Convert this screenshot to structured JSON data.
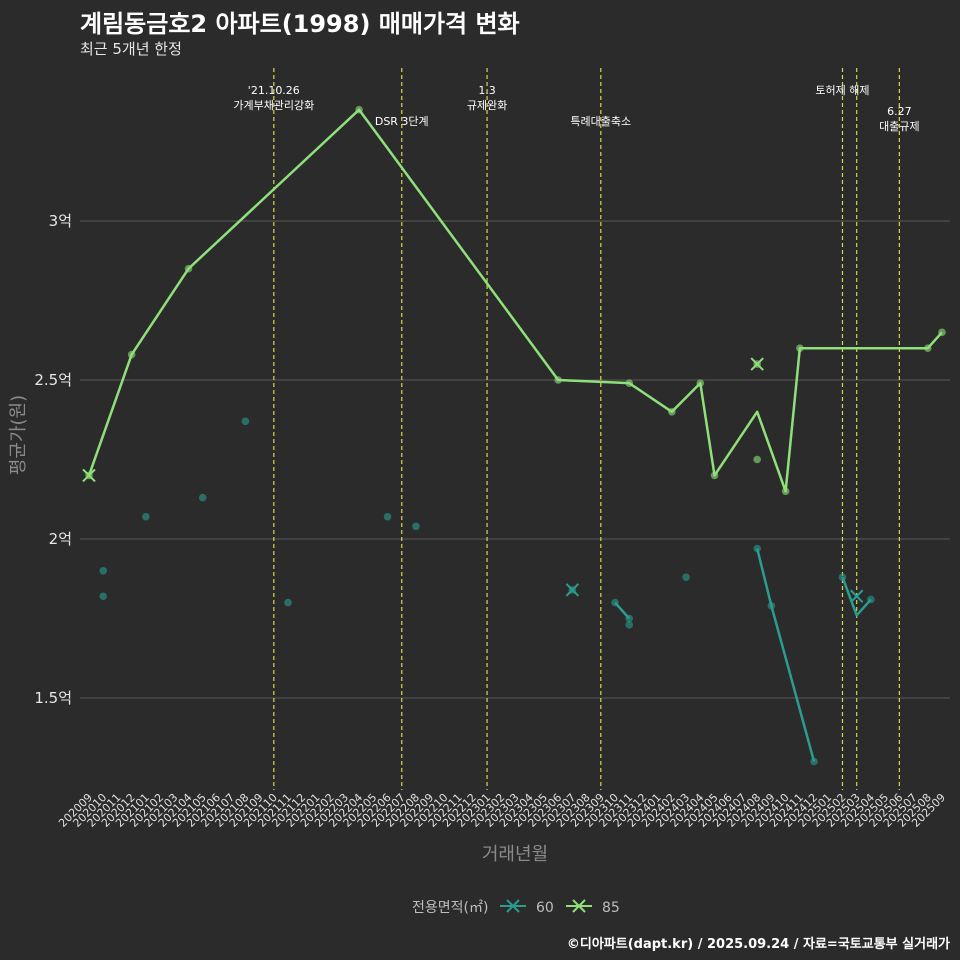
{
  "chart_data": {
    "type": "line",
    "title": "계림동금호2 아파트(1998) 매매가격 변화",
    "subtitle": "최근 5개년 한정",
    "xlabel": "거래년월",
    "ylabel": "평균가(원)",
    "caption": "©디아파트(dapt.kr) / 2025.09.24 / 자료=국토교통부 실거래가",
    "categories": [
      "202009",
      "202010",
      "202011",
      "202012",
      "202101",
      "202102",
      "202103",
      "202104",
      "202105",
      "202106",
      "202107",
      "202108",
      "202109",
      "202110",
      "202111",
      "202112",
      "202201",
      "202202",
      "202203",
      "202204",
      "202205",
      "202206",
      "202207",
      "202208",
      "202209",
      "202210",
      "202211",
      "202212",
      "202301",
      "202302",
      "202303",
      "202304",
      "202305",
      "202306",
      "202307",
      "202308",
      "202309",
      "202310",
      "202311",
      "202312",
      "202401",
      "202402",
      "202403",
      "202404",
      "202405",
      "202406",
      "202407",
      "202408",
      "202409",
      "202410",
      "202411",
      "202412",
      "202501",
      "202502",
      "202503",
      "202504",
      "202505",
      "202506",
      "202507",
      "202508",
      "202509"
    ],
    "y_ticks": [
      {
        "value": 1.5,
        "label": "1.5억"
      },
      {
        "value": 2.0,
        "label": "2억"
      },
      {
        "value": 2.5,
        "label": "2.5억"
      },
      {
        "value": 3.0,
        "label": "3억"
      }
    ],
    "ylim": [
      1.22,
      3.5
    ],
    "y_unit": "억원",
    "grid": true,
    "legend": {
      "title": "전용면적(㎡)",
      "position": "bottom"
    },
    "series": [
      {
        "name": "60",
        "color": "#2a9d8f",
        "line": [
          {
            "x": "202310",
            "y": 1.8
          },
          {
            "x": "202311",
            "y": 1.75
          },
          {
            "x": "202408",
            "y": 1.97
          },
          {
            "x": "202409",
            "y": 1.79
          },
          {
            "x": "202412",
            "y": 1.3
          },
          {
            "x": "202502",
            "y": 1.88
          },
          {
            "x": "202503",
            "y": 1.76
          },
          {
            "x": "202504",
            "y": 1.81
          }
        ],
        "line_segments": [
          [
            0,
            1
          ],
          [
            2,
            3,
            4
          ],
          [
            5,
            6,
            7
          ]
        ],
        "points": [
          {
            "x": "202010",
            "y": 1.9
          },
          {
            "x": "202010",
            "y": 1.82
          },
          {
            "x": "202101",
            "y": 2.07
          },
          {
            "x": "202105",
            "y": 2.13
          },
          {
            "x": "202108",
            "y": 2.37
          },
          {
            "x": "202111",
            "y": 1.8
          },
          {
            "x": "202206",
            "y": 2.07
          },
          {
            "x": "202208",
            "y": 2.04
          },
          {
            "x": "202307",
            "y": 1.84
          },
          {
            "x": "202310",
            "y": 1.8
          },
          {
            "x": "202311",
            "y": 1.75
          },
          {
            "x": "202311",
            "y": 1.73
          },
          {
            "x": "202403",
            "y": 1.88
          },
          {
            "x": "202408",
            "y": 1.97
          },
          {
            "x": "202409",
            "y": 1.79
          },
          {
            "x": "202412",
            "y": 1.3
          },
          {
            "x": "202502",
            "y": 1.88
          },
          {
            "x": "202504",
            "y": 1.81
          }
        ],
        "cross_markers": [
          {
            "x": "202307",
            "y": 1.84
          },
          {
            "x": "202503",
            "y": 1.82
          }
        ]
      },
      {
        "name": "85",
        "color": "#8fe07a",
        "line": [
          {
            "x": "202009",
            "y": 2.2
          },
          {
            "x": "202012",
            "y": 2.58
          },
          {
            "x": "202104",
            "y": 2.85
          },
          {
            "x": "202204",
            "y": 3.35
          },
          {
            "x": "202306",
            "y": 2.5
          },
          {
            "x": "202311",
            "y": 2.49
          },
          {
            "x": "202402",
            "y": 2.4
          },
          {
            "x": "202404",
            "y": 2.49
          },
          {
            "x": "202405",
            "y": 2.2
          },
          {
            "x": "202408",
            "y": 2.4
          },
          {
            "x": "202410",
            "y": 2.15
          },
          {
            "x": "202411",
            "y": 2.6
          },
          {
            "x": "202508",
            "y": 2.6
          },
          {
            "x": "202509",
            "y": 2.65
          }
        ],
        "points": [
          {
            "x": "202009",
            "y": 2.2
          },
          {
            "x": "202012",
            "y": 2.58
          },
          {
            "x": "202104",
            "y": 2.85
          },
          {
            "x": "202204",
            "y": 3.35
          },
          {
            "x": "202306",
            "y": 2.5
          },
          {
            "x": "202311",
            "y": 2.49
          },
          {
            "x": "202402",
            "y": 2.4
          },
          {
            "x": "202404",
            "y": 2.49
          },
          {
            "x": "202405",
            "y": 2.2
          },
          {
            "x": "202408",
            "y": 2.55
          },
          {
            "x": "202408",
            "y": 2.25
          },
          {
            "x": "202410",
            "y": 2.15
          },
          {
            "x": "202411",
            "y": 2.6
          },
          {
            "x": "202508",
            "y": 2.6
          },
          {
            "x": "202509",
            "y": 2.65
          }
        ],
        "cross_markers": [
          {
            "x": "202009",
            "y": 2.2
          },
          {
            "x": "202408",
            "y": 2.55
          }
        ]
      }
    ],
    "annotations": [
      {
        "x": "202110",
        "lines": [
          "'21.10.26",
          "가계부채관리강화"
        ],
        "row": 0
      },
      {
        "x": "202207",
        "lines": [
          "DSR 3단계"
        ],
        "row": 1,
        "side": "left"
      },
      {
        "x": "202301",
        "lines": [
          "1.3",
          "규제완화"
        ],
        "row": 0
      },
      {
        "x": "202309",
        "lines": [
          "특례대출축소"
        ],
        "row": 1
      },
      {
        "x": "202502",
        "lines": [
          "토허제 해제"
        ],
        "row": 0
      },
      {
        "x": "202503",
        "lines": [],
        "row": 0
      },
      {
        "x": "202506",
        "lines": [
          "6.27",
          "대출규제"
        ],
        "row": 1
      }
    ]
  }
}
